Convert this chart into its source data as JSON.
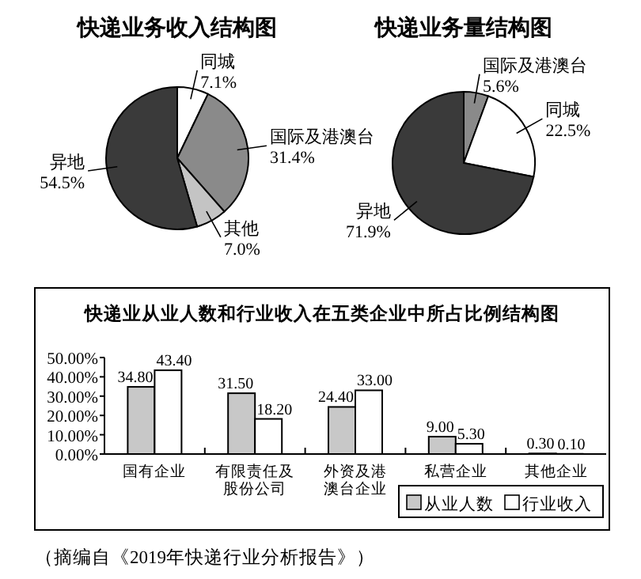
{
  "chart_data": [
    {
      "type": "pie",
      "title": "快递业务收入结构图",
      "categories": [
        "同城",
        "国际及港澳台",
        "其他",
        "异地"
      ],
      "values": [
        7.1,
        31.4,
        7.0,
        54.5
      ],
      "value_labels": [
        "7.1%",
        "31.4%",
        "7.0%",
        "54.5%"
      ],
      "colors": [
        "#ffffff",
        "#8a8a8a",
        "#c4c4c4",
        "#3a3a3a"
      ]
    },
    {
      "type": "pie",
      "title": "快递业务量结构图",
      "categories": [
        "国际及港澳台",
        "同城",
        "异地"
      ],
      "values": [
        5.6,
        22.5,
        71.9
      ],
      "value_labels": [
        "5.6%",
        "22.5%",
        "71.9%"
      ],
      "colors": [
        "#8a8a8a",
        "#ffffff",
        "#3a3a3a"
      ]
    },
    {
      "type": "bar",
      "title": "快递业从业人数和行业收入在五类企业中所占比例结构图",
      "categories": [
        "国有企业",
        "有限责任及股份公司",
        "外资及港澳台企业",
        "私营企业",
        "其他企业"
      ],
      "series": [
        {
          "name": "从业人数",
          "color": "#c8c8c8",
          "values": [
            34.8,
            31.5,
            24.4,
            9.0,
            0.3
          ],
          "value_labels": [
            "34.80",
            "31.50",
            "24.40",
            "9.00",
            "0.30"
          ]
        },
        {
          "name": "行业收入",
          "color": "#ffffff",
          "values": [
            43.4,
            18.2,
            33.0,
            5.3,
            0.1
          ],
          "value_labels": [
            "43.40",
            "18.20",
            "33.00",
            "5.30",
            "0.10"
          ]
        }
      ],
      "ylim": [
        0,
        50
      ],
      "yticks": [
        {
          "value": 0,
          "label": "0.00%"
        },
        {
          "value": 10,
          "label": "10.00%"
        },
        {
          "value": 20,
          "label": "20.00%"
        },
        {
          "value": 30,
          "label": "30.00%"
        },
        {
          "value": 40,
          "label": "40.00%"
        },
        {
          "value": 50,
          "label": "50.00%"
        }
      ],
      "grid": false,
      "legend": "bottom right",
      "annotations": [
        "（摘编自《2019年快递行业分析报告》）"
      ]
    }
  ]
}
